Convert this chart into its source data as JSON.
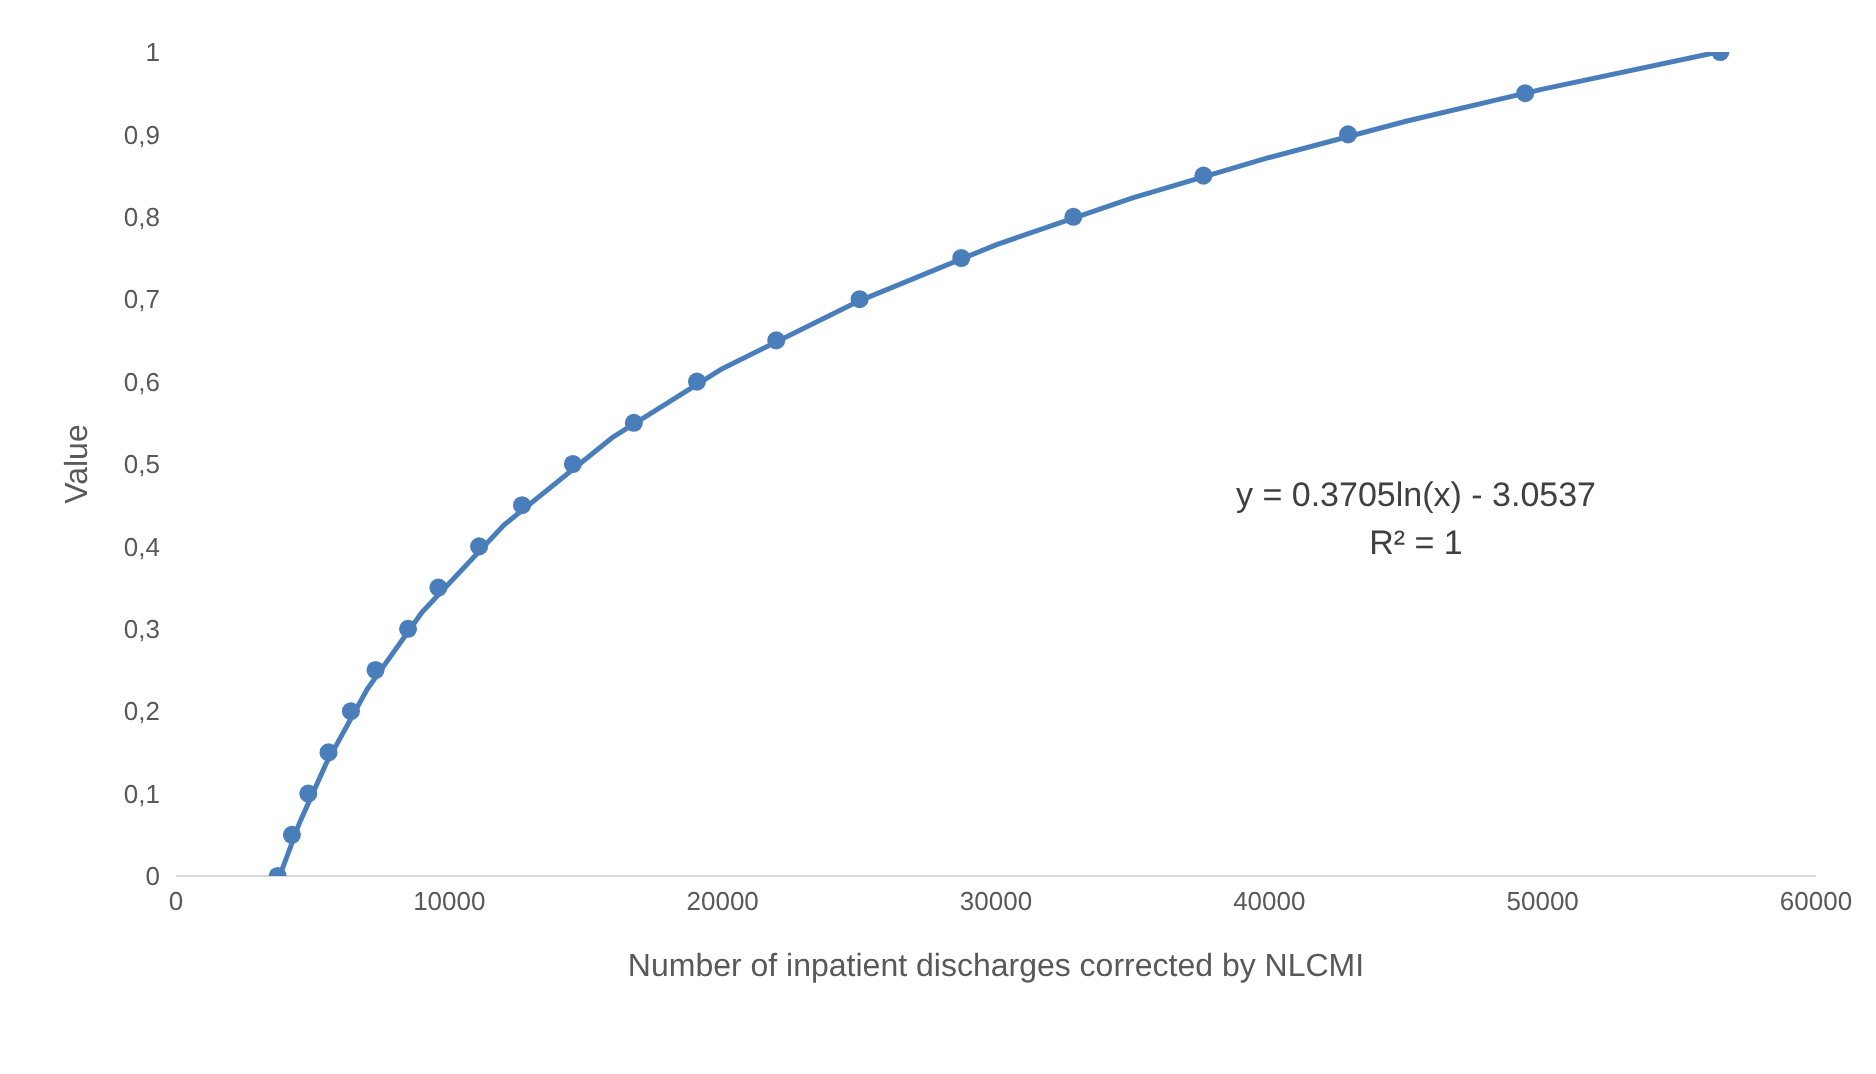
{
  "chart_data": {
    "type": "scatter",
    "xlabel": "Number of inpatient discharges corrected by NLCMI",
    "ylabel": "Value",
    "xlim": [
      0,
      60000
    ],
    "xticks": [
      0,
      10000,
      20000,
      30000,
      40000,
      50000,
      60000
    ],
    "ylim": [
      0,
      1
    ],
    "yticks": [
      0,
      {
        "value": 0.1,
        "label": "0,1"
      },
      {
        "value": 0.2,
        "label": "0,2"
      },
      {
        "value": 0.3,
        "label": "0,3"
      },
      {
        "value": 0.4,
        "label": "0,4"
      },
      {
        "value": 0.5,
        "label": "0,5"
      },
      {
        "value": 0.6,
        "label": "0,6"
      },
      {
        "value": 0.7,
        "label": "0,7"
      },
      {
        "value": 0.8,
        "label": "0,8"
      },
      {
        "value": 0.9,
        "label": "0,9"
      },
      1
    ],
    "grid": false,
    "series": [
      {
        "color": "#4a7ebb",
        "marker": "circle",
        "x": [
          3720,
          4240,
          4840,
          5580,
          6400,
          7300,
          8490,
          9600,
          11090,
          12660,
          14520,
          16750,
          19060,
          21960,
          25010,
          28730,
          32830,
          37590,
          42880,
          49360,
          56500
        ],
        "values": [
          0,
          0.05,
          0.1,
          0.15,
          0.2,
          0.25,
          0.3,
          0.35,
          0.4,
          0.45,
          0.5,
          0.55,
          0.6,
          0.65,
          0.7,
          0.75,
          0.8,
          0.85,
          0.9,
          0.95,
          1
        ]
      },
      {
        "type": "line",
        "color": "#4a7ebb",
        "marker": "none",
        "line_style": "solid",
        "x": [
          3792,
          4500,
          5500,
          7000,
          9000,
          12000,
          16000,
          20000,
          25000,
          30000,
          35000,
          40000,
          45000,
          50000,
          56420
        ],
        "values": [
          0,
          0.063,
          0.137,
          0.227,
          0.32,
          0.426,
          0.533,
          0.616,
          0.698,
          0.766,
          0.823,
          0.872,
          0.916,
          0.955,
          1
        ]
      }
    ],
    "annotations": [
      "y = 0.3705ln(x) - 3.0537",
      "R² = 1"
    ]
  }
}
